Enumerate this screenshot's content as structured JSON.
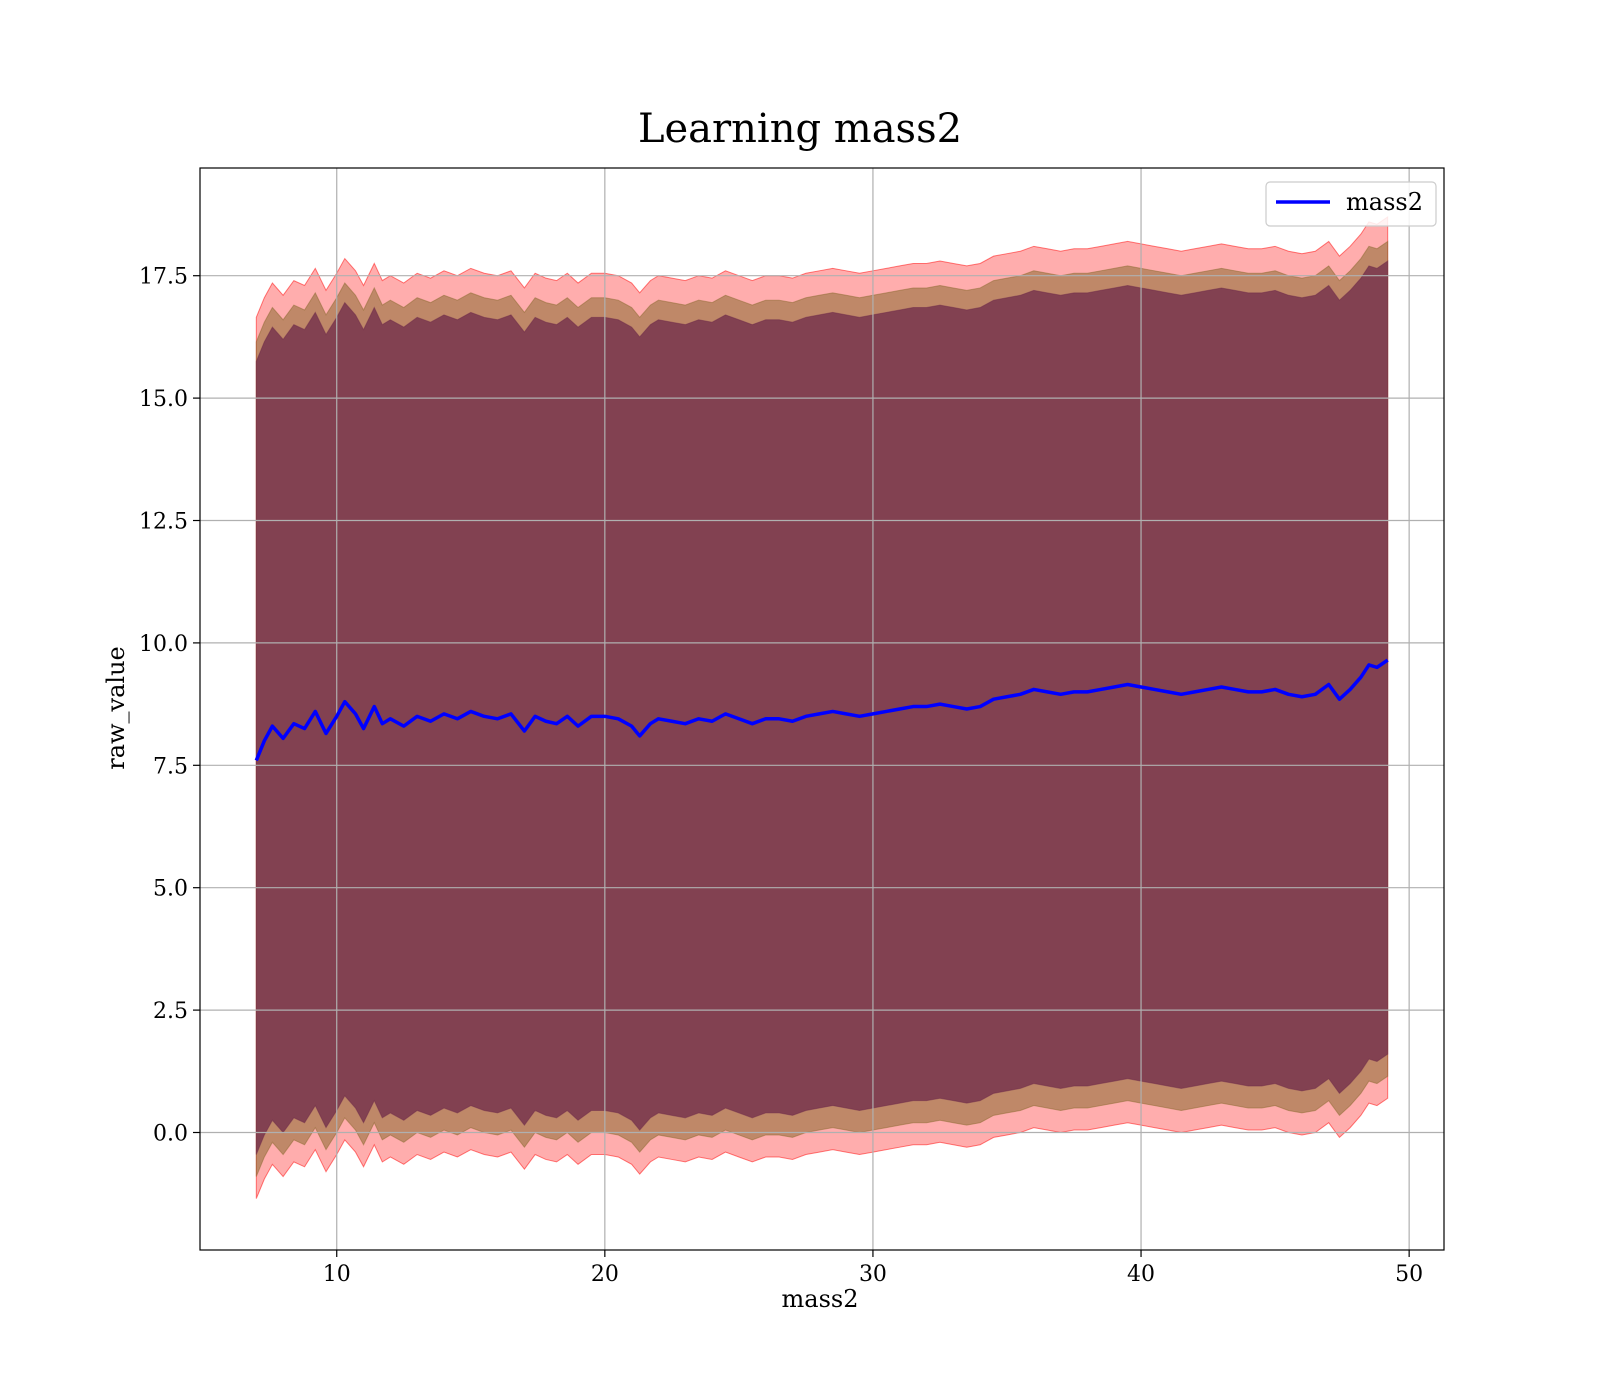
{
  "chart_data": {
    "type": "line",
    "title": "Learning mass2",
    "xlabel": "mass2",
    "ylabel": "raw_value",
    "xlim": [
      4.9,
      51.3
    ],
    "ylim": [
      -2.4,
      19.7
    ],
    "xticks": [
      10,
      20,
      30,
      40,
      50
    ],
    "xtick_labels": [
      "10",
      "20",
      "30",
      "40",
      "50"
    ],
    "yticks": [
      0.0,
      2.5,
      5.0,
      7.5,
      10.0,
      12.5,
      15.0,
      17.5
    ],
    "ytick_labels": [
      "0.0",
      "2.5",
      "5.0",
      "7.5",
      "10.0",
      "12.5",
      "15.0",
      "17.5"
    ],
    "grid": true,
    "legend_position": "top-right",
    "colors": {
      "line": "#0000ff",
      "band_outer": "#ff0000",
      "band_middle": "#8b6a2f",
      "band_inner": "#6e2a4a",
      "grid": "#b0b0b0"
    },
    "series": [
      {
        "name": "mass2",
        "x": [
          7.0,
          7.3,
          7.6,
          8.0,
          8.4,
          8.8,
          9.2,
          9.6,
          10.0,
          10.3,
          10.7,
          11.0,
          11.4,
          11.7,
          12.0,
          12.5,
          13.0,
          13.5,
          14.0,
          14.5,
          15.0,
          15.5,
          16.0,
          16.5,
          17.0,
          17.4,
          17.8,
          18.2,
          18.6,
          19.0,
          19.5,
          20.0,
          20.5,
          21.0,
          21.3,
          21.7,
          22.0,
          22.5,
          23.0,
          23.5,
          24.0,
          24.5,
          25.0,
          25.5,
          26.0,
          26.5,
          27.0,
          27.5,
          28.0,
          28.5,
          29.0,
          29.5,
          30.0,
          30.5,
          31.0,
          31.5,
          32.0,
          32.5,
          33.0,
          33.5,
          34.0,
          34.5,
          35.0,
          35.5,
          36.0,
          36.5,
          37.0,
          37.5,
          38.0,
          38.5,
          39.0,
          39.5,
          40.0,
          40.5,
          41.0,
          41.5,
          42.0,
          42.5,
          43.0,
          43.5,
          44.0,
          44.5,
          45.0,
          45.5,
          46.0,
          46.5,
          47.0,
          47.4,
          47.8,
          48.2,
          48.5,
          48.8,
          49.2
        ],
        "values": [
          7.6,
          8.0,
          8.3,
          8.05,
          8.35,
          8.25,
          8.6,
          8.15,
          8.5,
          8.8,
          8.55,
          8.25,
          8.7,
          8.35,
          8.45,
          8.3,
          8.5,
          8.4,
          8.55,
          8.45,
          8.6,
          8.5,
          8.45,
          8.55,
          8.2,
          8.5,
          8.4,
          8.35,
          8.5,
          8.3,
          8.5,
          8.5,
          8.45,
          8.3,
          8.1,
          8.35,
          8.45,
          8.4,
          8.35,
          8.45,
          8.4,
          8.55,
          8.45,
          8.35,
          8.45,
          8.45,
          8.4,
          8.5,
          8.55,
          8.6,
          8.55,
          8.5,
          8.55,
          8.6,
          8.65,
          8.7,
          8.7,
          8.75,
          8.7,
          8.65,
          8.7,
          8.85,
          8.9,
          8.95,
          9.05,
          9.0,
          8.95,
          9.0,
          9.0,
          9.05,
          9.1,
          9.15,
          9.1,
          9.05,
          9.0,
          8.95,
          9.0,
          9.05,
          9.1,
          9.05,
          9.0,
          9.0,
          9.05,
          8.95,
          8.9,
          8.95,
          9.15,
          8.85,
          9.05,
          9.3,
          9.55,
          9.5,
          9.65
        ]
      }
    ],
    "bands": [
      {
        "upper_offset": 9.05,
        "lower_offset": 8.95
      },
      {
        "upper_offset": 8.55,
        "lower_offset": 8.5
      },
      {
        "upper_offset": 8.15,
        "lower_offset": 8.05
      }
    ],
    "legend": [
      {
        "label": "mass2"
      }
    ]
  }
}
